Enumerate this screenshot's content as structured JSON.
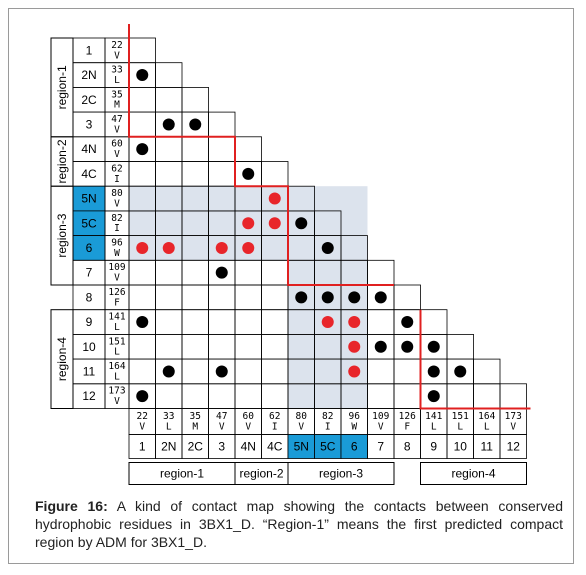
{
  "rows": [
    {
      "label": "1",
      "num": "22",
      "aa": "V",
      "hl": false
    },
    {
      "label": "2N",
      "num": "33",
      "aa": "L",
      "hl": false
    },
    {
      "label": "2C",
      "num": "35",
      "aa": "M",
      "hl": false
    },
    {
      "label": "3",
      "num": "47",
      "aa": "V",
      "hl": false
    },
    {
      "label": "4N",
      "num": "60",
      "aa": "V",
      "hl": false
    },
    {
      "label": "4C",
      "num": "62",
      "aa": "I",
      "hl": false
    },
    {
      "label": "5N",
      "num": "80",
      "aa": "V",
      "hl": true
    },
    {
      "label": "5C",
      "num": "82",
      "aa": "I",
      "hl": true
    },
    {
      "label": "6",
      "num": "96",
      "aa": "W",
      "hl": true
    },
    {
      "label": "7",
      "num": "109",
      "aa": "V",
      "hl": false
    },
    {
      "label": "8",
      "num": "126",
      "aa": "F",
      "hl": false
    },
    {
      "label": "9",
      "num": "141",
      "aa": "L",
      "hl": false
    },
    {
      "label": "10",
      "num": "151",
      "aa": "L",
      "hl": false
    },
    {
      "label": "11",
      "num": "164",
      "aa": "L",
      "hl": false
    },
    {
      "label": "12",
      "num": "173",
      "aa": "V",
      "hl": false
    }
  ],
  "regions_left": [
    "region-1",
    "region-2",
    "region-3",
    "region-4"
  ],
  "regions_bottom": [
    "region-1",
    "region-2",
    "region-3",
    "region-4"
  ],
  "black_contacts": [
    [
      1,
      0
    ],
    [
      3,
      1
    ],
    [
      3,
      2
    ],
    [
      4,
      0
    ],
    [
      5,
      4
    ],
    [
      7,
      6
    ],
    [
      8,
      7
    ],
    [
      9,
      3
    ],
    [
      10,
      6
    ],
    [
      10,
      7
    ],
    [
      10,
      8
    ],
    [
      10,
      9
    ],
    [
      11,
      0
    ],
    [
      11,
      10
    ],
    [
      12,
      9
    ],
    [
      12,
      10
    ],
    [
      12,
      11
    ],
    [
      13,
      1
    ],
    [
      13,
      3
    ],
    [
      13,
      11
    ],
    [
      13,
      12
    ],
    [
      14,
      0
    ],
    [
      14,
      11
    ]
  ],
  "red_contacts": [
    [
      6,
      5
    ],
    [
      7,
      4
    ],
    [
      7,
      5
    ],
    [
      8,
      0
    ],
    [
      8,
      1
    ],
    [
      8,
      3
    ],
    [
      8,
      4
    ],
    [
      11,
      7
    ],
    [
      11,
      8
    ],
    [
      12,
      8
    ],
    [
      13,
      8
    ]
  ],
  "colors": {
    "red_dot": "#e8252a",
    "black_dot": "#000000",
    "highlight_blue": "#1a9bd7",
    "shade": "#dce3ed",
    "boundary_red": "#e02020"
  },
  "caption": {
    "label": "Figure 16:",
    "text": " A kind of contact map showing the contacts between conserved hydrophobic residues in 3BX1_D. “Region-1” means the first predicted compact region by ADM for 3BX1_D."
  }
}
